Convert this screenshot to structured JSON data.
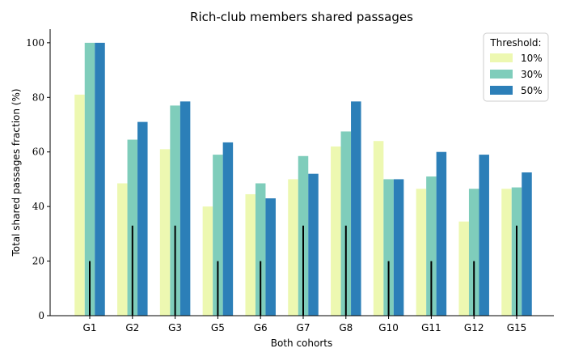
{
  "chart_data": {
    "type": "bar",
    "title": "Rich-club members shared passages",
    "xlabel": "Both cohorts",
    "ylabel": "Total shared passages fraction (%)",
    "ylim": [
      0,
      105
    ],
    "yticks": [
      0,
      20,
      40,
      60,
      80,
      100
    ],
    "categories": [
      "G1",
      "G2",
      "G3",
      "G5",
      "G6",
      "G7",
      "G8",
      "G10",
      "G11",
      "G12",
      "G15"
    ],
    "legend": {
      "title": "Threshold:",
      "placement": "top-right"
    },
    "series": [
      {
        "name": "10%",
        "color": "#edf8b1",
        "values": [
          81,
          48.5,
          61,
          40,
          44.5,
          50,
          62,
          64,
          46.5,
          34.5,
          46.5
        ]
      },
      {
        "name": "30%",
        "color": "#7fcdbb",
        "values": [
          100,
          64.5,
          77,
          59,
          48.5,
          58.5,
          67.5,
          50,
          51,
          46.5,
          47
        ]
      },
      {
        "name": "50%",
        "color": "#2c7fb8",
        "values": [
          100,
          71,
          78.5,
          63.5,
          43,
          52,
          78.5,
          50,
          60,
          59,
          52.5
        ]
      }
    ],
    "markers": {
      "color": "#000000",
      "values": [
        20,
        33,
        33,
        20,
        20,
        33,
        33,
        20,
        20,
        20,
        33
      ]
    },
    "grid": false
  }
}
